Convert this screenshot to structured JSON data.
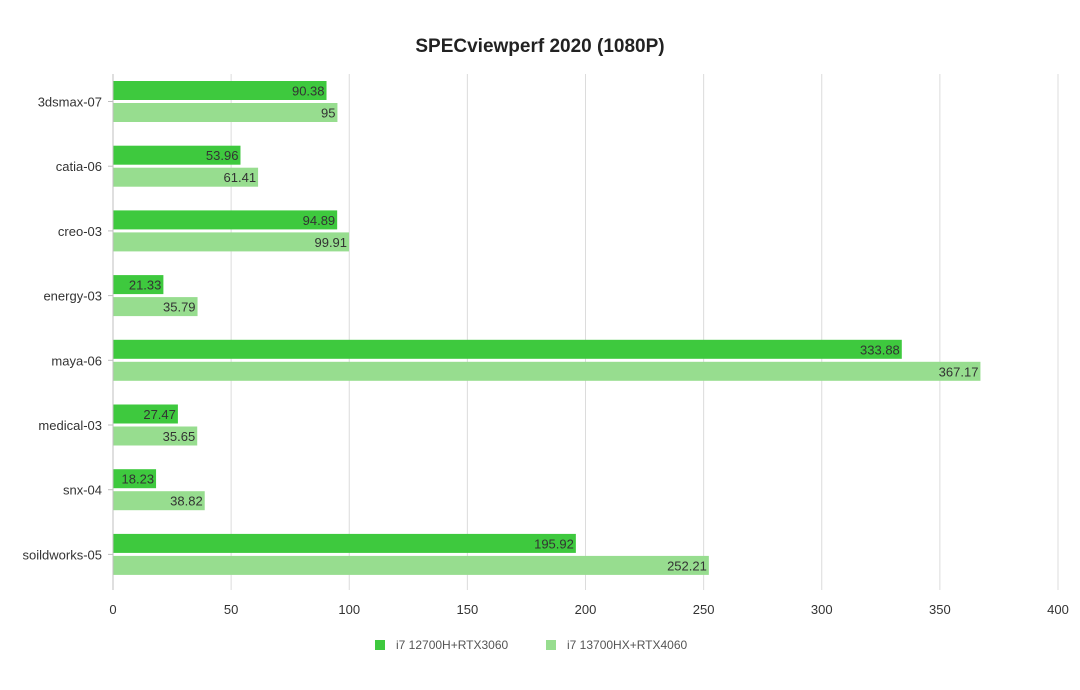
{
  "chart_data": {
    "type": "bar",
    "orientation": "horizontal",
    "title": "SPECviewperf 2020 (1080P)",
    "xlabel": "",
    "ylabel": "",
    "categories": [
      "3dsmax-07",
      "catia-06",
      "creo-03",
      "energy-03",
      "maya-06",
      "medical-03",
      "snx-04",
      "soildworks-05"
    ],
    "series": [
      {
        "name": "i7 12700H+RTX3060",
        "color": "#3ec93e",
        "values": [
          90.38,
          53.96,
          94.89,
          21.33,
          333.88,
          27.47,
          18.23,
          195.92
        ]
      },
      {
        "name": "i7 13700HX+RTX4060",
        "color": "#97dd8f",
        "values": [
          95,
          61.41,
          99.91,
          35.79,
          367.17,
          35.65,
          38.82,
          252.21
        ]
      }
    ],
    "xlim": [
      0,
      400
    ],
    "xticks": [
      "0",
      "50",
      "100",
      "150",
      "200",
      "250",
      "300",
      "350",
      "400"
    ],
    "grid": true,
    "legend_position": "bottom"
  }
}
